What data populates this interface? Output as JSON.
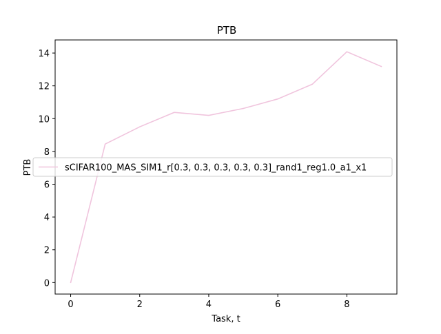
{
  "chart_data": {
    "type": "line",
    "title": "PTB",
    "xlabel": "Task, t",
    "ylabel": "PTB",
    "xlim": [
      -0.45,
      9.45
    ],
    "ylim": [
      -0.7,
      14.8
    ],
    "xticks": [
      0,
      2,
      4,
      6,
      8
    ],
    "yticks": [
      0,
      2,
      4,
      6,
      8,
      10,
      12,
      14
    ],
    "grid": false,
    "legend_position": "center-left",
    "series": [
      {
        "name": "sCIFAR100_MAS_SIM1_r[0.3, 0.3, 0.3, 0.3, 0.3]_rand1_reg1.0_a1_x1",
        "color": "#f0c4dd",
        "x": [
          0,
          1,
          2,
          3,
          4,
          5,
          6,
          7,
          8,
          9
        ],
        "values": [
          0.0,
          8.45,
          9.5,
          10.38,
          10.2,
          10.62,
          11.2,
          12.1,
          14.08,
          13.18
        ]
      }
    ]
  }
}
